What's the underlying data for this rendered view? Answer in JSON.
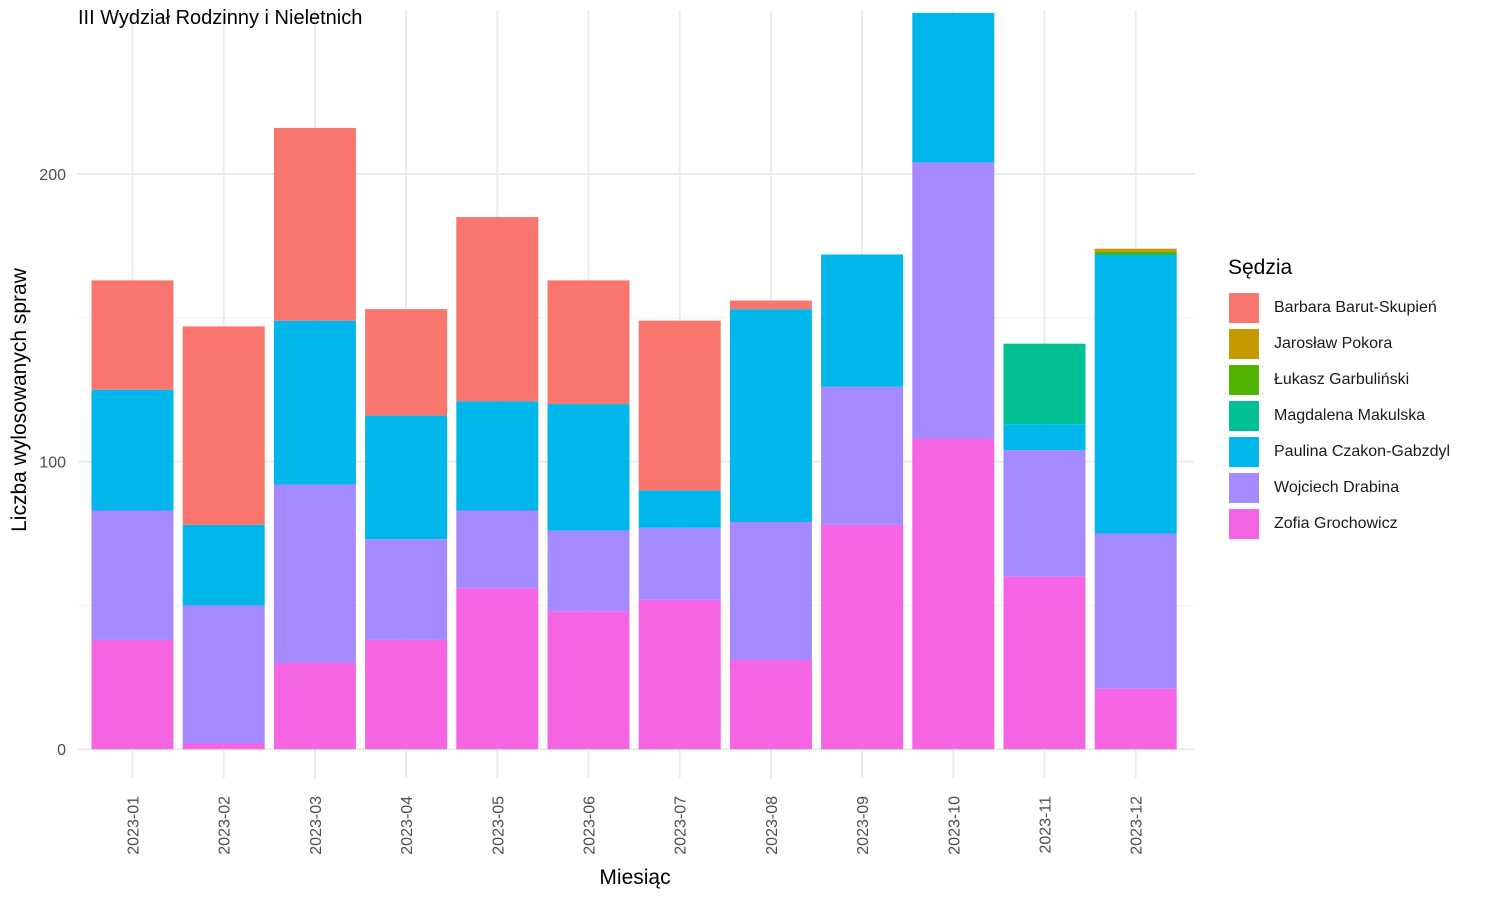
{
  "chart_data": {
    "type": "bar",
    "stacked": true,
    "title": "III Wydział Rodzinny i Nieletnich",
    "xlabel": "Miesiąc",
    "ylabel": "Liczba wylosowanych spraw",
    "ylim": [
      -10,
      257
    ],
    "yticks": [
      0,
      100,
      200
    ],
    "grid": true,
    "legend_title": "Sędzia",
    "legend_position": "right",
    "categories": [
      "2023-01",
      "2023-02",
      "2023-03",
      "2023-04",
      "2023-05",
      "2023-06",
      "2023-07",
      "2023-08",
      "2023-09",
      "2023-10",
      "2023-11",
      "2023-12"
    ],
    "series": [
      {
        "name": "Zofia Grochowicz",
        "color": "#F564E3",
        "values": [
          38,
          2,
          30,
          38,
          56,
          48,
          52,
          31,
          78,
          108,
          60,
          21
        ]
      },
      {
        "name": "Wojciech Drabina",
        "color": "#A58AFF",
        "values": [
          45,
          48,
          62,
          35,
          27,
          28,
          25,
          48,
          48,
          96,
          44,
          54
        ]
      },
      {
        "name": "Paulina Czakon-Gabzdyl",
        "color": "#00B6EB",
        "values": [
          42,
          28,
          57,
          43,
          38,
          44,
          13,
          74,
          46,
          52,
          9,
          97
        ]
      },
      {
        "name": "Magdalena Makulska",
        "color": "#00C094",
        "values": [
          0,
          0,
          0,
          0,
          0,
          0,
          0,
          0,
          0,
          0,
          28,
          0
        ]
      },
      {
        "name": "Łukasz Garbuliński",
        "color": "#53B400",
        "values": [
          0,
          0,
          0,
          0,
          0,
          0,
          0,
          0,
          0,
          0,
          0,
          1
        ]
      },
      {
        "name": "Jarosław Pokora",
        "color": "#C49A00",
        "values": [
          0,
          0,
          0,
          0,
          0,
          0,
          0,
          0,
          0,
          0,
          0,
          1
        ]
      },
      {
        "name": "Barbara Barut-Skupień",
        "color": "#F8766D",
        "values": [
          38,
          69,
          67,
          37,
          64,
          43,
          59,
          3,
          0,
          0,
          0,
          0
        ]
      }
    ],
    "legend_order": [
      "Barbara Barut-Skupień",
      "Jarosław Pokora",
      "Łukasz Garbuliński",
      "Magdalena Makulska",
      "Paulina Czakon-Gabzdyl",
      "Wojciech Drabina",
      "Zofia Grochowicz"
    ]
  }
}
